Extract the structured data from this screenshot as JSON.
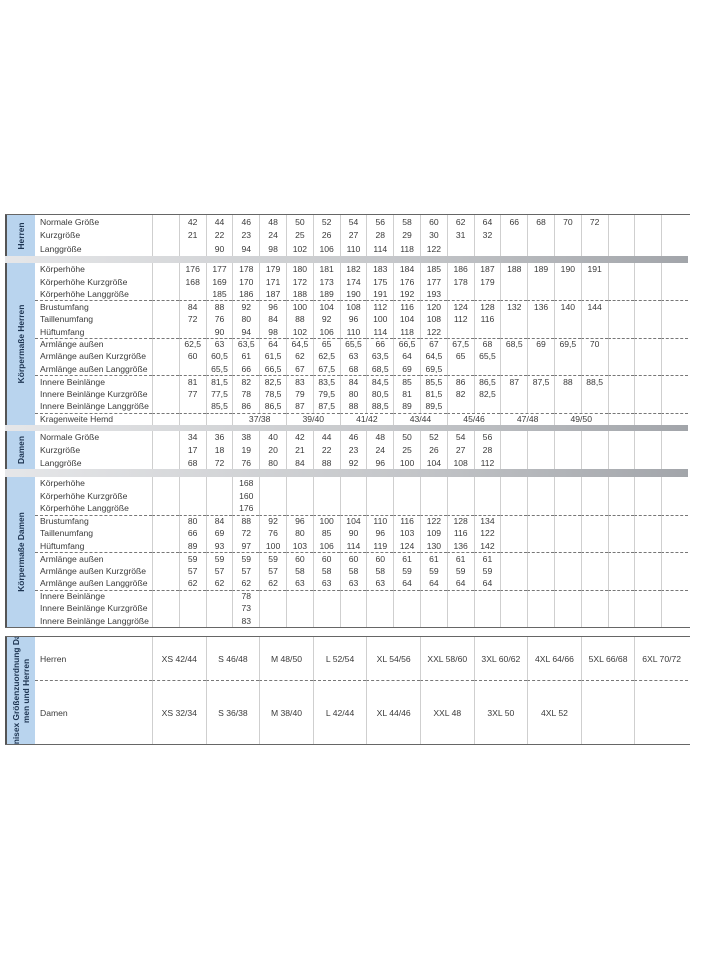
{
  "colors": {
    "label_blue": "#b9d4ee",
    "label_text": "#1e3552",
    "band_gray": "#a2a5aa"
  },
  "herren": {
    "title": "Herren",
    "rows": [
      {
        "label": "Normale Größe",
        "values": [
          "42",
          "44",
          "46",
          "48",
          "50",
          "52",
          "54",
          "56",
          "58",
          "60",
          "62",
          "64",
          "66",
          "68",
          "70",
          "72"
        ]
      },
      {
        "label": "Kurzgröße",
        "values": [
          "21",
          "22",
          "23",
          "24",
          "25",
          "26",
          "27",
          "28",
          "29",
          "30",
          "31",
          "32"
        ]
      },
      {
        "label": "Langgröße",
        "values": [
          "",
          "90",
          "94",
          "98",
          "102",
          "106",
          "110",
          "114",
          "118",
          "122"
        ]
      }
    ]
  },
  "koerper_herren": {
    "title": "Körpermaße Herren",
    "rows": [
      {
        "label": "Körperhöhe",
        "values": [
          "176",
          "177",
          "178",
          "179",
          "180",
          "181",
          "182",
          "183",
          "184",
          "185",
          "186",
          "187",
          "188",
          "189",
          "190",
          "191"
        ]
      },
      {
        "label": "Körperhöhe Kurzgröße",
        "values": [
          "168",
          "169",
          "170",
          "171",
          "172",
          "173",
          "174",
          "175",
          "176",
          "177",
          "178",
          "179"
        ]
      },
      {
        "label": "Körperhöhe Langgröße",
        "values": [
          "",
          "185",
          "186",
          "187",
          "188",
          "189",
          "190",
          "191",
          "192",
          "193"
        ]
      },
      {
        "label": "Brustumfang",
        "group_start": true,
        "values": [
          "84",
          "88",
          "92",
          "96",
          "100",
          "104",
          "108",
          "112",
          "116",
          "120",
          "124",
          "128",
          "132",
          "136",
          "140",
          "144"
        ]
      },
      {
        "label": "Taillenumfang",
        "values": [
          "72",
          "76",
          "80",
          "84",
          "88",
          "92",
          "96",
          "100",
          "104",
          "108",
          "112",
          "116"
        ]
      },
      {
        "label": "Hüftumfang",
        "values": [
          "",
          "90",
          "94",
          "98",
          "102",
          "106",
          "110",
          "114",
          "118",
          "122"
        ]
      },
      {
        "label": "Armlänge außen",
        "group_start": true,
        "values": [
          "62,5",
          "63",
          "63,5",
          "64",
          "64,5",
          "65",
          "65,5",
          "66",
          "66,5",
          "67",
          "67,5",
          "68",
          "68,5",
          "69",
          "69,5",
          "70"
        ]
      },
      {
        "label": "Armlänge außen Kurzgröße",
        "values": [
          "60",
          "60,5",
          "61",
          "61,5",
          "62",
          "62,5",
          "63",
          "63,5",
          "64",
          "64,5",
          "65",
          "65,5"
        ]
      },
      {
        "label": "Armlänge außen Langgröße",
        "values": [
          "",
          "65,5",
          "66",
          "66,5",
          "67",
          "67,5",
          "68",
          "68,5",
          "69",
          "69,5"
        ]
      },
      {
        "label": "Innere Beinlänge",
        "group_start": true,
        "values": [
          "81",
          "81,5",
          "82",
          "82,5",
          "83",
          "83,5",
          "84",
          "84,5",
          "85",
          "85,5",
          "86",
          "86,5",
          "87",
          "87,5",
          "88",
          "88,5"
        ]
      },
      {
        "label": "Innere Beinlänge Kurzgröße",
        "values": [
          "77",
          "77,5",
          "78",
          "78,5",
          "79",
          "79,5",
          "80",
          "80,5",
          "81",
          "81,5",
          "82",
          "82,5"
        ]
      },
      {
        "label": "Innere Beinlänge Langgröße",
        "values": [
          "",
          "85,5",
          "86",
          "86,5",
          "87",
          "87,5",
          "88",
          "88,5",
          "89",
          "89,5"
        ]
      },
      {
        "label": "Kragenweite Hemd",
        "group_start": true,
        "spans": [
          [
            "",
            1
          ],
          [
            "",
            1
          ],
          [
            "",
            1
          ],
          [
            "37/38",
            2
          ],
          [
            "39/40",
            2
          ],
          [
            "41/42",
            2
          ],
          [
            "43/44",
            2
          ],
          [
            "45/46",
            2
          ],
          [
            "47/48",
            2
          ],
          [
            "49/50",
            2
          ],
          [
            "",
            1
          ],
          [
            "",
            1
          ],
          [
            "",
            1
          ]
        ]
      }
    ]
  },
  "damen": {
    "title": "Damen",
    "rows": [
      {
        "label": "Normale Größe",
        "values": [
          "34",
          "36",
          "38",
          "40",
          "42",
          "44",
          "46",
          "48",
          "50",
          "52",
          "54",
          "56"
        ]
      },
      {
        "label": "Kurzgröße",
        "values": [
          "17",
          "18",
          "19",
          "20",
          "21",
          "22",
          "23",
          "24",
          "25",
          "26",
          "27",
          "28"
        ]
      },
      {
        "label": "Langgröße",
        "values": [
          "68",
          "72",
          "76",
          "80",
          "84",
          "88",
          "92",
          "96",
          "100",
          "104",
          "108",
          "112"
        ]
      }
    ]
  },
  "koerper_damen": {
    "title": "Körpermaße Damen",
    "rows": [
      {
        "label": "Körperhöhe",
        "values": [
          "",
          "",
          "168"
        ]
      },
      {
        "label": "Körperhöhe Kurzgröße",
        "values": [
          "",
          "",
          "160"
        ]
      },
      {
        "label": "Körperhöhe Langgröße",
        "values": [
          "",
          "",
          "176"
        ]
      },
      {
        "label": "Brustumfang",
        "group_start": true,
        "values": [
          "80",
          "84",
          "88",
          "92",
          "96",
          "100",
          "104",
          "110",
          "116",
          "122",
          "128",
          "134"
        ]
      },
      {
        "label": "Taillenumfang",
        "values": [
          "66",
          "69",
          "72",
          "76",
          "80",
          "85",
          "90",
          "96",
          "103",
          "109",
          "116",
          "122"
        ]
      },
      {
        "label": "Hüftumfang",
        "values": [
          "89",
          "93",
          "97",
          "100",
          "103",
          "106",
          "114",
          "119",
          "124",
          "130",
          "136",
          "142"
        ]
      },
      {
        "label": "Armlänge außen",
        "group_start": true,
        "values": [
          "59",
          "59",
          "59",
          "59",
          "60",
          "60",
          "60",
          "60",
          "61",
          "61",
          "61",
          "61"
        ]
      },
      {
        "label": "Armlänge außen Kurzgröße",
        "values": [
          "57",
          "57",
          "57",
          "57",
          "58",
          "58",
          "58",
          "58",
          "59",
          "59",
          "59",
          "59"
        ]
      },
      {
        "label": "Armlänge außen Langgröße",
        "values": [
          "62",
          "62",
          "62",
          "62",
          "63",
          "63",
          "63",
          "63",
          "64",
          "64",
          "64",
          "64"
        ]
      },
      {
        "label": "Innere Beinlänge",
        "group_start": true,
        "values": [
          "",
          "",
          "78"
        ]
      },
      {
        "label": "Innere Beinlänge Kurzgröße",
        "values": [
          "",
          "",
          "73"
        ]
      },
      {
        "label": "Innere Beinlänge Langgröße",
        "values": [
          "",
          "",
          "83"
        ]
      }
    ]
  },
  "unisex": {
    "title_line1": "Unisex Größenzuordnung Da-",
    "title_line2": "men und Herren",
    "rows": [
      {
        "label": "Herren",
        "values": [
          "XS 42/44",
          "S 46/48",
          "M 48/50",
          "L 52/54",
          "XL 54/56",
          "XXL 58/60",
          "3XL 60/62",
          "4XL 64/66",
          "5XL 66/68",
          "6XL 70/72"
        ]
      },
      {
        "label": "Damen",
        "group_start": true,
        "values": [
          "XS 32/34",
          "S 36/38",
          "M 38/40",
          "L 42/44",
          "XL 44/46",
          "XXL 48",
          "3XL 50",
          "4XL 52",
          "",
          ""
        ]
      }
    ]
  }
}
